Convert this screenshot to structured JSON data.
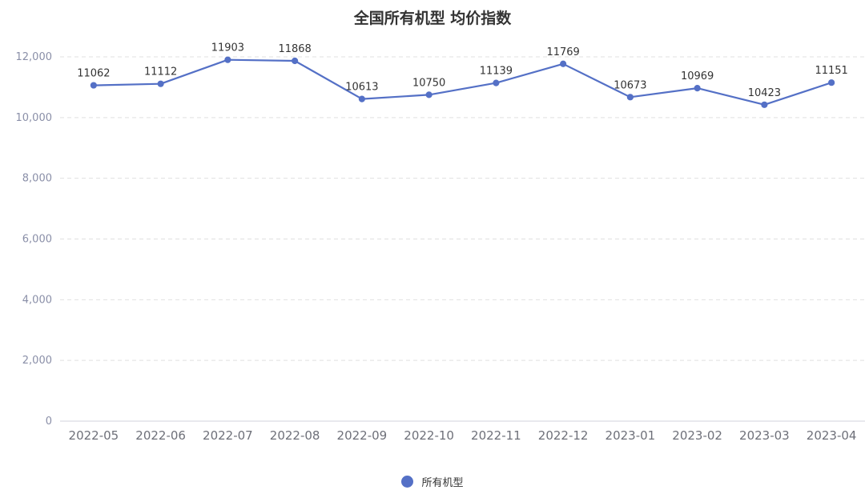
{
  "chart_data": {
    "type": "line",
    "title": "全国所有机型 均价指数",
    "categories": [
      "2022-05",
      "2022-06",
      "2022-07",
      "2022-08",
      "2022-09",
      "2022-10",
      "2022-11",
      "2022-12",
      "2023-01",
      "2023-02",
      "2023-03",
      "2023-04"
    ],
    "series": [
      {
        "name": "所有机型",
        "values": [
          11062,
          11112,
          11903,
          11868,
          10613,
          10750,
          11139,
          11769,
          10673,
          10969,
          10423,
          11151
        ]
      }
    ],
    "ylim": [
      0,
      12000
    ],
    "yticks": [
      0,
      2000,
      4000,
      6000,
      8000,
      10000,
      12000
    ],
    "ytick_labels": [
      "0",
      "2,000",
      "4,000",
      "6,000",
      "8,000",
      "10,000",
      "12,000"
    ],
    "xlabel": "",
    "ylabel": "",
    "grid": true,
    "legend_position": "bottom-center",
    "colors": {
      "series": "#5470c6",
      "grid": "#e0e0e0",
      "axis": "#d0d3dc"
    }
  }
}
